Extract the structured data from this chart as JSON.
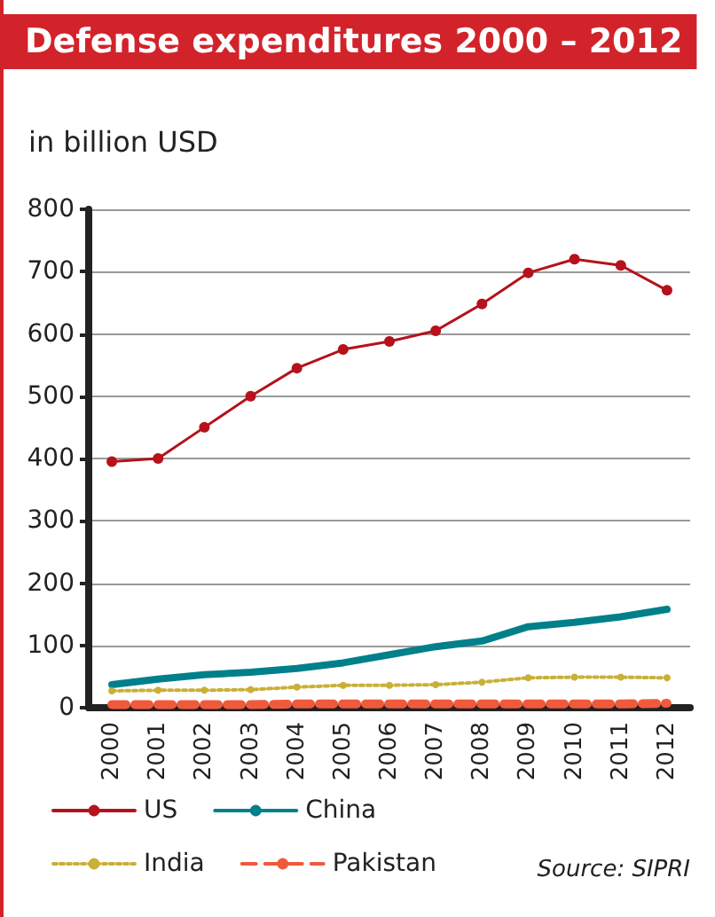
{
  "chart_data": {
    "type": "line",
    "title": "Defense expenditures 2000 – 2012",
    "subtitle": "in billion USD",
    "categories": [
      "2000",
      "2001",
      "2002",
      "2003",
      "2004",
      "2005",
      "2006",
      "2007",
      "2008",
      "2009",
      "2010",
      "2011",
      "2012"
    ],
    "series": [
      {
        "name": "US",
        "color": "#b5121b",
        "marker": "circle",
        "line_style": "solid",
        "values": [
          395,
          400,
          450,
          500,
          545,
          575,
          588,
          605,
          648,
          698,
          720,
          710,
          670
        ]
      },
      {
        "name": "China",
        "color": "#00808a",
        "marker": "none",
        "line_style": "solid",
        "values": [
          37,
          46,
          53,
          57,
          63,
          72,
          85,
          98,
          107,
          130,
          137,
          146,
          158
        ]
      },
      {
        "name": "India",
        "color": "#c9b037",
        "marker": "circle",
        "line_style": "dotted",
        "values": [
          27,
          28,
          28,
          29,
          33,
          36,
          36,
          37,
          41,
          48,
          49,
          49,
          48
        ]
      },
      {
        "name": "Pakistan",
        "color": "#f05a3c",
        "marker": "none",
        "line_style": "dashed",
        "values": [
          5,
          5,
          5,
          5,
          6,
          6,
          6,
          6,
          6,
          6,
          6,
          6,
          7
        ]
      }
    ],
    "ylim": [
      0,
      800
    ],
    "yticks": [
      0,
      100,
      200,
      300,
      400,
      500,
      600,
      700,
      800
    ],
    "grid": "y",
    "legend": "bottom left",
    "annotations": [
      "Source: SIPRI"
    ]
  }
}
